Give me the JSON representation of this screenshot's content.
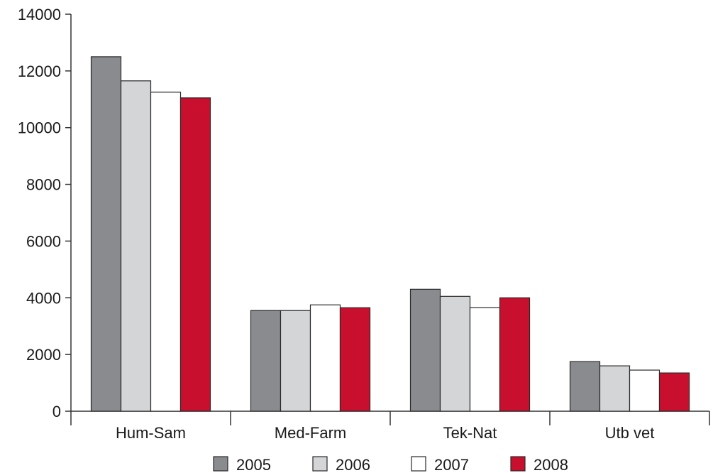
{
  "chart_data": {
    "type": "bar",
    "categories": [
      "Hum-Sam",
      "Med-Farm",
      "Tek-Nat",
      "Utb vet"
    ],
    "series": [
      {
        "name": "2005",
        "color": "#8a8b8f",
        "values": [
          12500,
          3550,
          4300,
          1750
        ]
      },
      {
        "name": "2006",
        "color": "#d4d5d7",
        "values": [
          11650,
          3550,
          4050,
          1600
        ]
      },
      {
        "name": "2007",
        "color": "#ffffff",
        "values": [
          11250,
          3750,
          3650,
          1450
        ]
      },
      {
        "name": "2008",
        "color": "#c8102e",
        "values": [
          11050,
          3650,
          4000,
          1350
        ]
      }
    ],
    "yticks": [
      0,
      2000,
      4000,
      6000,
      8000,
      10000,
      12000,
      14000
    ],
    "ylim": [
      0,
      14000
    ],
    "xlabel": "",
    "ylabel": "",
    "legend_position": "bottom",
    "grid": false
  }
}
